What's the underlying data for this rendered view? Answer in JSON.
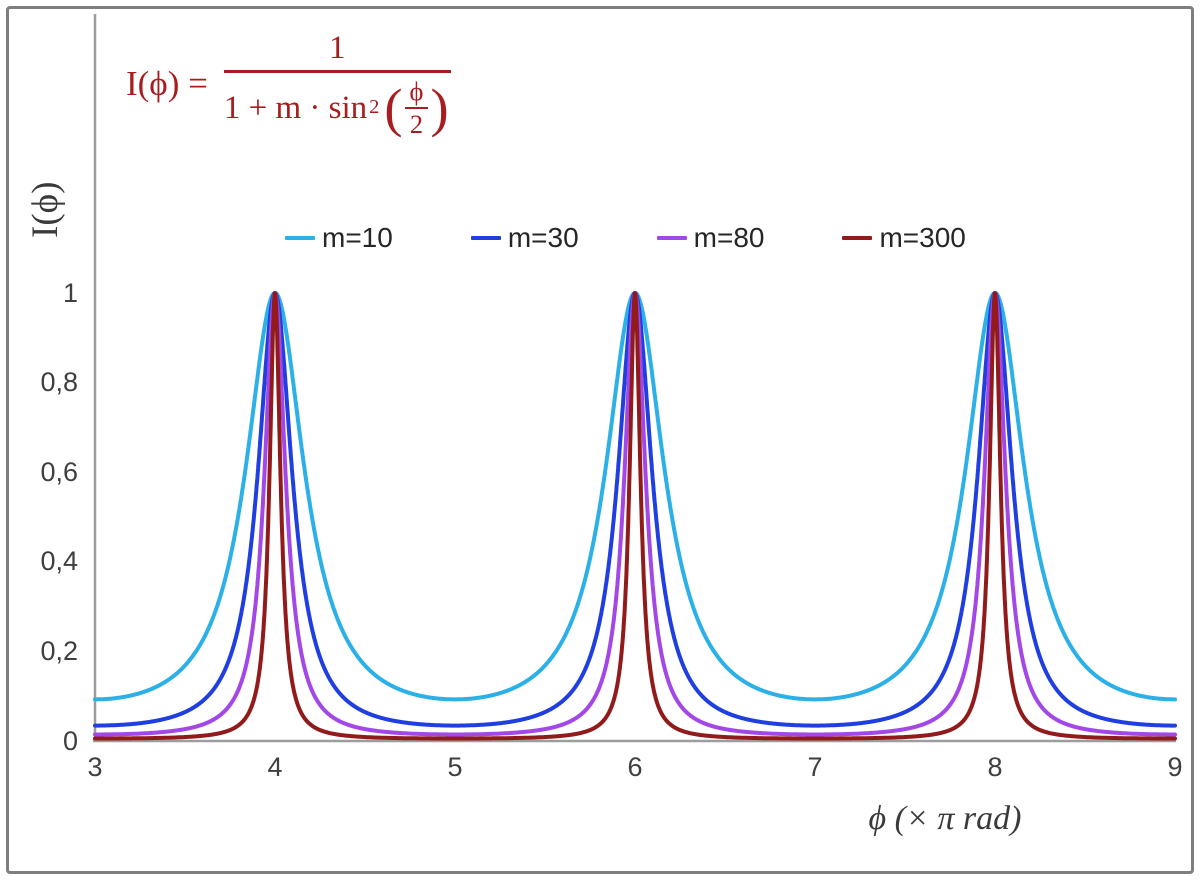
{
  "formula": {
    "lhs": "I(ϕ) =",
    "numerator": "1",
    "denominator_prefix": "1 + m · sin",
    "denominator_exponent": "2",
    "inner_numerator": "ϕ",
    "inner_denominator": "2",
    "open_paren": "(",
    "close_paren": ")",
    "color": "#a81d20"
  },
  "axes": {
    "ylabel": "I(ϕ)",
    "xlabel": "ϕ  (× π rad)",
    "axis_line_color": "#9d9d9d",
    "tick_color": "#3f3f3f"
  },
  "chart_data": {
    "type": "line",
    "function": "I(phi) = 1 / (1 + m * sin^2(phi/2)), x axis in units of pi rad",
    "x_range": [
      3,
      9
    ],
    "ylim": [
      0,
      1
    ],
    "x_ticks": [
      "3",
      "4",
      "5",
      "6",
      "7",
      "8",
      "9"
    ],
    "y_ticks": [
      "0",
      "0,2",
      "0,4",
      "0,6",
      "0,8",
      "1"
    ],
    "y_tick_values": [
      0,
      0.2,
      0.4,
      0.6,
      0.8,
      1
    ],
    "peaks_at_x": [
      4,
      6,
      8
    ],
    "peak_value": 1,
    "minima_values": {
      "m=10": 0.091,
      "m=30": 0.032,
      "m=80": 0.012,
      "m=300": 0.003
    },
    "grid": false,
    "legend_position": "top-center",
    "series": [
      {
        "name": "m=10",
        "m": 10,
        "color": "#2cb0e8"
      },
      {
        "name": "m=30",
        "m": 30,
        "color": "#1f3fe0"
      },
      {
        "name": "m=80",
        "m": 80,
        "color": "#a348e6"
      },
      {
        "name": "m=300",
        "m": 300,
        "color": "#911b1b"
      }
    ]
  }
}
